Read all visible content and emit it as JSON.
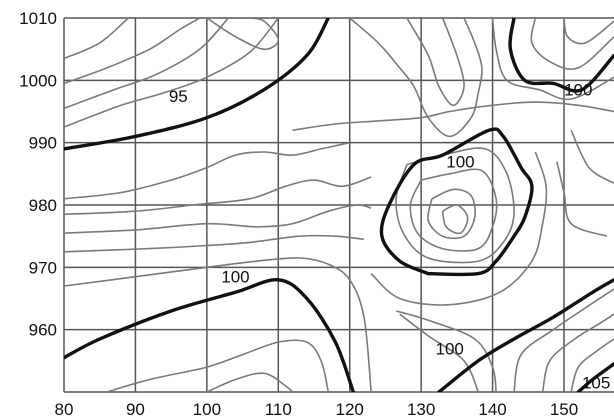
{
  "chart_data": {
    "type": "contour",
    "title": "",
    "xlabel": "",
    "ylabel": "",
    "xlim": [
      80,
      157
    ],
    "ylim": [
      950,
      1010
    ],
    "x_ticks": [
      "80",
      "90",
      "100",
      "110",
      "120",
      "130",
      "140",
      "150"
    ],
    "y_ticks": [
      "1010",
      "1000",
      "990",
      "980",
      "970",
      "960"
    ],
    "grid": true,
    "colors": {
      "major": "#111111",
      "minor": "#7a7a7a",
      "grid": "#555555"
    },
    "major_contours": [
      {
        "level": 95,
        "points": [
          [
            80,
            989
          ],
          [
            90,
            991
          ],
          [
            100,
            994
          ],
          [
            108,
            998.5
          ],
          [
            114,
            1004
          ],
          [
            117,
            1010
          ]
        ]
      },
      {
        "level": 100,
        "points": [
          [
            80,
            955.5
          ],
          [
            85,
            958.5
          ],
          [
            95,
            963
          ],
          [
            104,
            966
          ],
          [
            110,
            968
          ],
          [
            114,
            965
          ],
          [
            118,
            958
          ],
          [
            120.5,
            950
          ]
        ]
      },
      {
        "level": 100,
        "points": [
          [
            131,
            969
          ],
          [
            127,
            971
          ],
          [
            124.5,
            975
          ],
          [
            125.5,
            980
          ],
          [
            129,
            986.5
          ],
          [
            133,
            988
          ],
          [
            139.5,
            992
          ],
          [
            141.5,
            991
          ],
          [
            144,
            986
          ],
          [
            145.5,
            983
          ],
          [
            144.5,
            978
          ],
          [
            143,
            975
          ],
          [
            140.5,
            971
          ],
          [
            138,
            969
          ],
          [
            131,
            969
          ]
        ]
      },
      {
        "level": 100,
        "points": [
          [
            143,
            1010
          ],
          [
            142.5,
            1005
          ],
          [
            144.5,
            1000
          ],
          [
            148.5,
            999.5
          ],
          [
            152.5,
            998.5
          ],
          [
            157,
            1004
          ]
        ]
      },
      {
        "level": 100,
        "points": [
          [
            132.5,
            950
          ],
          [
            138,
            955
          ],
          [
            143,
            958.5
          ],
          [
            148.5,
            962
          ],
          [
            154,
            966
          ],
          [
            157,
            968
          ]
        ]
      },
      {
        "level": 105,
        "points": [
          [
            152,
            950
          ],
          [
            154,
            952
          ],
          [
            157,
            954.5
          ]
        ]
      }
    ],
    "contour_labels": [
      {
        "text": "95",
        "x": 96,
        "y": 997.5
      },
      {
        "text": "100",
        "x": 104,
        "y": 968.5
      },
      {
        "text": "100",
        "x": 135.5,
        "y": 987
      },
      {
        "text": "100",
        "x": 152,
        "y": 998.5
      },
      {
        "text": "100",
        "x": 134,
        "y": 957
      },
      {
        "text": "105",
        "x": 154.5,
        "y": 951.5
      }
    ],
    "minor_contours": [
      [
        [
          80,
          981
        ],
        [
          88,
          982
        ],
        [
          95,
          984
        ],
        [
          100,
          986
        ],
        [
          104,
          988
        ],
        [
          108,
          988.5
        ],
        [
          112,
          988
        ],
        [
          116,
          989
        ],
        [
          120,
          990
        ]
      ],
      [
        [
          80,
          978.5
        ],
        [
          90,
          979
        ],
        [
          98,
          980
        ],
        [
          106,
          981
        ],
        [
          111,
          983
        ],
        [
          115,
          984
        ],
        [
          119,
          983
        ],
        [
          123,
          984.5
        ]
      ],
      [
        [
          80,
          975.5
        ],
        [
          90,
          976
        ],
        [
          100,
          977
        ],
        [
          107,
          976.5
        ],
        [
          112,
          977
        ],
        [
          117,
          979
        ],
        [
          121,
          980
        ],
        [
          123,
          979.5
        ]
      ],
      [
        [
          80,
          972.5
        ],
        [
          92,
          973
        ],
        [
          100,
          973.5
        ],
        [
          106,
          974
        ],
        [
          113,
          975
        ],
        [
          118,
          975
        ],
        [
          122,
          974.5
        ]
      ],
      [
        [
          80,
          967
        ],
        [
          90,
          968.5
        ],
        [
          100,
          970
        ],
        [
          107,
          971
        ],
        [
          113,
          971.5
        ],
        [
          117,
          970.5
        ],
        [
          120,
          968
        ],
        [
          122,
          962
        ],
        [
          123,
          950
        ]
      ],
      [
        [
          86,
          950
        ],
        [
          92,
          952
        ],
        [
          100,
          954
        ],
        [
          105,
          956
        ],
        [
          110,
          958
        ],
        [
          114,
          958
        ],
        [
          116,
          955
        ],
        [
          117,
          950
        ]
      ],
      [
        [
          100,
          950
        ],
        [
          104,
          952
        ],
        [
          108,
          953
        ],
        [
          111,
          951
        ],
        [
          112,
          950
        ]
      ],
      [
        [
          80,
          992.5
        ],
        [
          88,
          996
        ],
        [
          94,
          998
        ],
        [
          100,
          1000.5
        ],
        [
          106,
          1004.5
        ],
        [
          110,
          1010
        ]
      ],
      [
        [
          80,
          995.5
        ],
        [
          87,
          998.5
        ],
        [
          93,
          1001
        ],
        [
          99,
          1005
        ],
        [
          103,
          1010
        ]
      ],
      [
        [
          80,
          999.5
        ],
        [
          86,
          1002
        ],
        [
          92,
          1005
        ],
        [
          96,
          1008
        ],
        [
          99,
          1010
        ]
      ],
      [
        [
          80,
          1003.5
        ],
        [
          85,
          1006
        ],
        [
          89,
          1010
        ]
      ],
      [
        [
          100,
          1010
        ],
        [
          104,
          1007
        ],
        [
          108,
          1005
        ],
        [
          110,
          1006.5
        ],
        [
          108,
          1009.5
        ],
        [
          106,
          1010
        ]
      ],
      [
        [
          120,
          1010
        ],
        [
          124,
          1006
        ],
        [
          127,
          1002
        ],
        [
          129,
          999
        ],
        [
          131,
          994
        ],
        [
          134,
          991
        ],
        [
          137,
          994
        ],
        [
          138,
          998
        ],
        [
          138.5,
          1002
        ],
        [
          137.5,
          1006
        ],
        [
          136,
          1010
        ]
      ],
      [
        [
          128,
          1010
        ],
        [
          131,
          1004
        ],
        [
          132.5,
          999
        ],
        [
          134.5,
          996
        ],
        [
          136,
          999
        ],
        [
          135,
          1004
        ],
        [
          133,
          1010
        ]
      ],
      [
        [
          112,
          992
        ],
        [
          118,
          993
        ],
        [
          124,
          993.5
        ],
        [
          130,
          994
        ],
        [
          134,
          995
        ],
        [
          140,
          996
        ],
        [
          146,
          996.5
        ],
        [
          152,
          996
        ],
        [
          157,
          995
        ]
      ],
      [
        [
          140,
          1010
        ],
        [
          140.5,
          1005
        ],
        [
          142,
          1000
        ],
        [
          146.5,
          998.5
        ],
        [
          151,
          997
        ],
        [
          157,
          1000.5
        ]
      ],
      [
        [
          146,
          1010
        ],
        [
          145.5,
          1006
        ],
        [
          148,
          1003
        ],
        [
          152,
          1002
        ],
        [
          157,
          1007
        ]
      ],
      [
        [
          150,
          1010
        ],
        [
          150.5,
          1007
        ],
        [
          153,
          1006
        ],
        [
          157,
          1009.5
        ]
      ],
      [
        [
          128,
          986.5
        ],
        [
          126.5,
          981
        ],
        [
          127.5,
          975.5
        ],
        [
          131,
          971.5
        ],
        [
          138,
          971
        ],
        [
          141.5,
          974
        ],
        [
          143,
          978.5
        ],
        [
          142,
          985
        ],
        [
          139,
          989
        ],
        [
          133,
          988
        ],
        [
          128,
          986.5
        ]
      ],
      [
        [
          130,
          984
        ],
        [
          128.5,
          980
        ],
        [
          129.5,
          975.5
        ],
        [
          133,
          973
        ],
        [
          138,
          973
        ],
        [
          140,
          976.5
        ],
        [
          140.5,
          981
        ],
        [
          138.5,
          985.5
        ],
        [
          134,
          985
        ],
        [
          130,
          984
        ]
      ],
      [
        [
          131.5,
          981
        ],
        [
          131,
          977.5
        ],
        [
          133,
          975
        ],
        [
          136,
          975
        ],
        [
          137.5,
          978
        ],
        [
          137,
          981.5
        ],
        [
          134.5,
          982.5
        ],
        [
          131.5,
          981
        ]
      ],
      [
        [
          133,
          979
        ],
        [
          133.5,
          976.5
        ],
        [
          135.5,
          975.5
        ],
        [
          136.5,
          978
        ],
        [
          135,
          980
        ],
        [
          133,
          979
        ]
      ],
      [
        [
          146,
          988.5
        ],
        [
          147.5,
          983
        ],
        [
          147,
          977
        ],
        [
          145.5,
          971
        ],
        [
          141,
          966
        ],
        [
          134,
          964
        ],
        [
          127,
          965
        ],
        [
          123,
          969
        ]
      ],
      [
        [
          149,
          987
        ],
        [
          150,
          982
        ],
        [
          151,
          977
        ],
        [
          156,
          975
        ]
      ],
      [
        [
          151,
          992
        ],
        [
          153.5,
          986
        ],
        [
          157,
          983.5
        ]
      ],
      [
        [
          143,
          950
        ],
        [
          144,
          956
        ],
        [
          148.5,
          960
        ],
        [
          153,
          963.5
        ],
        [
          157,
          966.5
        ]
      ],
      [
        [
          147,
          950
        ],
        [
          148,
          955
        ],
        [
          151.5,
          958.5
        ],
        [
          155,
          961
        ],
        [
          157,
          962.5
        ]
      ],
      [
        [
          151,
          950
        ],
        [
          152,
          954
        ],
        [
          154.5,
          956.5
        ],
        [
          157,
          958.5
        ]
      ],
      [
        [
          138,
          950
        ],
        [
          136,
          955
        ],
        [
          131,
          959
        ],
        [
          127,
          962.5
        ]
      ],
      [
        [
          140.5,
          950
        ],
        [
          140,
          954
        ],
        [
          137.5,
          958.5
        ],
        [
          131,
          961.5
        ],
        [
          126.5,
          963
        ]
      ]
    ]
  }
}
